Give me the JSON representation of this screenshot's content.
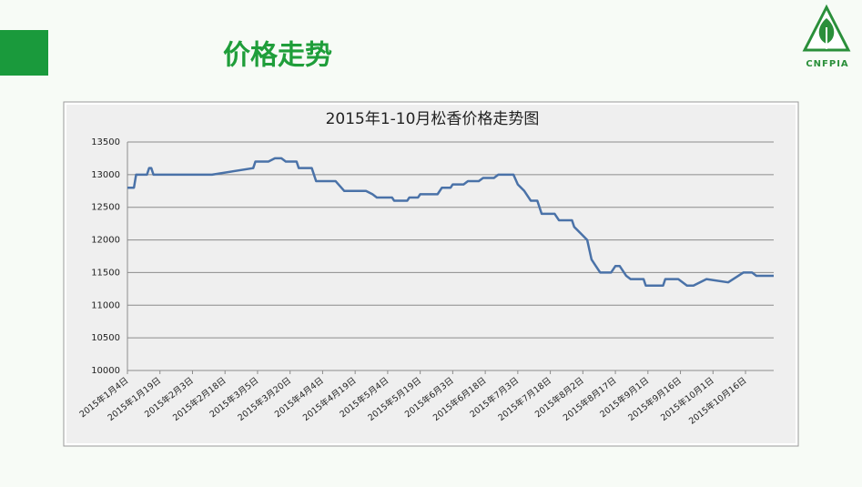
{
  "header": {
    "title": "价格走势",
    "logo_text": "CNFPIA"
  },
  "chart_data": {
    "type": "line",
    "title": "2015年1-10月松香价格走势图",
    "x": [
      "2015-01-04",
      "2015-01-07",
      "2015-01-08",
      "2015-01-13",
      "2015-01-14",
      "2015-01-15",
      "2015-01-16",
      "2015-02-12",
      "2015-03-03",
      "2015-03-04",
      "2015-03-10",
      "2015-03-13",
      "2015-03-16",
      "2015-03-18",
      "2015-03-23",
      "2015-03-24",
      "2015-03-30",
      "2015-04-01",
      "2015-04-10",
      "2015-04-14",
      "2015-04-24",
      "2015-04-27",
      "2015-04-29",
      "2015-05-06",
      "2015-05-07",
      "2015-05-13",
      "2015-05-14",
      "2015-05-18",
      "2015-05-19",
      "2015-05-27",
      "2015-05-29",
      "2015-06-02",
      "2015-06-03",
      "2015-06-08",
      "2015-06-10",
      "2015-06-15",
      "2015-06-17",
      "2015-06-22",
      "2015-06-24",
      "2015-07-01",
      "2015-07-03",
      "2015-07-06",
      "2015-07-09",
      "2015-07-12",
      "2015-07-14",
      "2015-07-20",
      "2015-07-22",
      "2015-07-28",
      "2015-07-29",
      "2015-08-01",
      "2015-08-04",
      "2015-08-06",
      "2015-08-08",
      "2015-08-10",
      "2015-08-15",
      "2015-08-17",
      "2015-08-19",
      "2015-08-22",
      "2015-08-24",
      "2015-08-30",
      "2015-08-31",
      "2015-09-08",
      "2015-09-09",
      "2015-09-15",
      "2015-09-19",
      "2015-09-22",
      "2015-09-28",
      "2015-10-08",
      "2015-10-15",
      "2015-10-19",
      "2015-10-21",
      "2015-10-29"
    ],
    "series": [
      {
        "color": "#4a72a8",
        "values": [
          12800,
          12800,
          13000,
          13000,
          13100,
          13100,
          13000,
          13000,
          13100,
          13200,
          13200,
          13250,
          13250,
          13200,
          13200,
          13100,
          13100,
          12900,
          12900,
          12750,
          12750,
          12700,
          12650,
          12650,
          12600,
          12600,
          12650,
          12650,
          12700,
          12700,
          12800,
          12800,
          12850,
          12850,
          12900,
          12900,
          12950,
          12950,
          13000,
          13000,
          12850,
          12750,
          12600,
          12600,
          12400,
          12400,
          12300,
          12300,
          12200,
          12100,
          12000,
          11700,
          11600,
          11500,
          11500,
          11600,
          11600,
          11450,
          11400,
          11400,
          11300,
          11300,
          11400,
          11400,
          11300,
          11300,
          11400,
          11350,
          11500,
          11500,
          11450,
          11450
        ]
      }
    ],
    "xlim": [
      "2015-01-04",
      "2015-10-29"
    ],
    "xticks": [
      {
        "value": "2015-01-04",
        "label": "2015年1月4日"
      },
      {
        "value": "2015-01-19",
        "label": "2015年1月19日"
      },
      {
        "value": "2015-02-03",
        "label": "2015年2月3日"
      },
      {
        "value": "2015-02-18",
        "label": "2015年2月18日"
      },
      {
        "value": "2015-03-05",
        "label": "2015年3月5日"
      },
      {
        "value": "2015-03-20",
        "label": "2015年3月20日"
      },
      {
        "value": "2015-04-04",
        "label": "2015年4月4日"
      },
      {
        "value": "2015-04-19",
        "label": "2015年4月19日"
      },
      {
        "value": "2015-05-04",
        "label": "2015年5月4日"
      },
      {
        "value": "2015-05-19",
        "label": "2015年5月19日"
      },
      {
        "value": "2015-06-03",
        "label": "2015年6月3日"
      },
      {
        "value": "2015-06-18",
        "label": "2015年6月18日"
      },
      {
        "value": "2015-07-03",
        "label": "2015年7月3日"
      },
      {
        "value": "2015-07-18",
        "label": "2015年7月18日"
      },
      {
        "value": "2015-08-02",
        "label": "2015年8月2日"
      },
      {
        "value": "2015-08-17",
        "label": "2015年8月17日"
      },
      {
        "value": "2015-09-01",
        "label": "2015年9月1日"
      },
      {
        "value": "2015-09-16",
        "label": "2015年9月16日"
      },
      {
        "value": "2015-10-01",
        "label": "2015年10月1日"
      },
      {
        "value": "2015-10-16",
        "label": "2015年10月16日"
      }
    ],
    "ylim": [
      10000,
      13500
    ],
    "yticks": [
      10000,
      10500,
      11000,
      11500,
      12000,
      12500,
      13000,
      13500
    ],
    "grid": true
  }
}
